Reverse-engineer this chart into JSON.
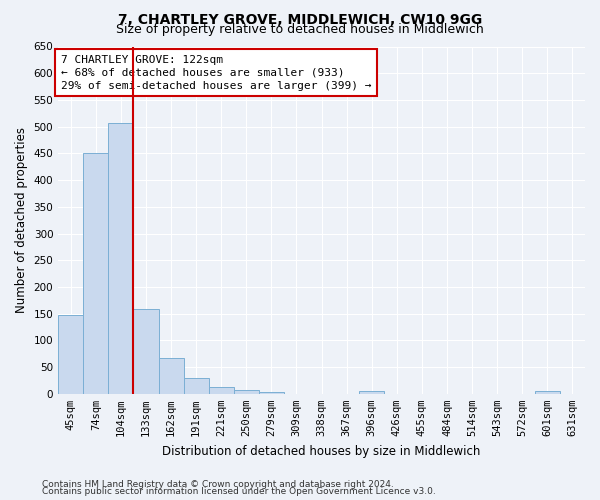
{
  "title": "7, CHARTLEY GROVE, MIDDLEWICH, CW10 9GG",
  "subtitle": "Size of property relative to detached houses in Middlewich",
  "xlabel": "Distribution of detached houses by size in Middlewich",
  "ylabel": "Number of detached properties",
  "footer_line1": "Contains HM Land Registry data © Crown copyright and database right 2024.",
  "footer_line2": "Contains public sector information licensed under the Open Government Licence v3.0.",
  "bin_labels": [
    "45sqm",
    "74sqm",
    "104sqm",
    "133sqm",
    "162sqm",
    "191sqm",
    "221sqm",
    "250sqm",
    "279sqm",
    "309sqm",
    "338sqm",
    "367sqm",
    "396sqm",
    "426sqm",
    "455sqm",
    "484sqm",
    "514sqm",
    "543sqm",
    "572sqm",
    "601sqm",
    "631sqm"
  ],
  "bar_values": [
    148,
    450,
    507,
    158,
    67,
    30,
    13,
    8,
    3,
    0,
    0,
    0,
    5,
    0,
    0,
    0,
    0,
    0,
    0,
    5,
    0
  ],
  "bar_color": "#c9d9ee",
  "bar_edge_color": "#7bafd4",
  "subject_line_color": "#cc0000",
  "annotation_text": "7 CHARTLEY GROVE: 122sqm\n← 68% of detached houses are smaller (933)\n29% of semi-detached houses are larger (399) →",
  "ylim": [
    0,
    650
  ],
  "yticks": [
    0,
    50,
    100,
    150,
    200,
    250,
    300,
    350,
    400,
    450,
    500,
    550,
    600,
    650
  ],
  "background_color": "#eef2f8",
  "grid_color": "#ffffff",
  "title_fontsize": 10,
  "subtitle_fontsize": 9,
  "axis_label_fontsize": 8.5,
  "tick_fontsize": 7.5,
  "annotation_fontsize": 8,
  "footer_fontsize": 6.5
}
